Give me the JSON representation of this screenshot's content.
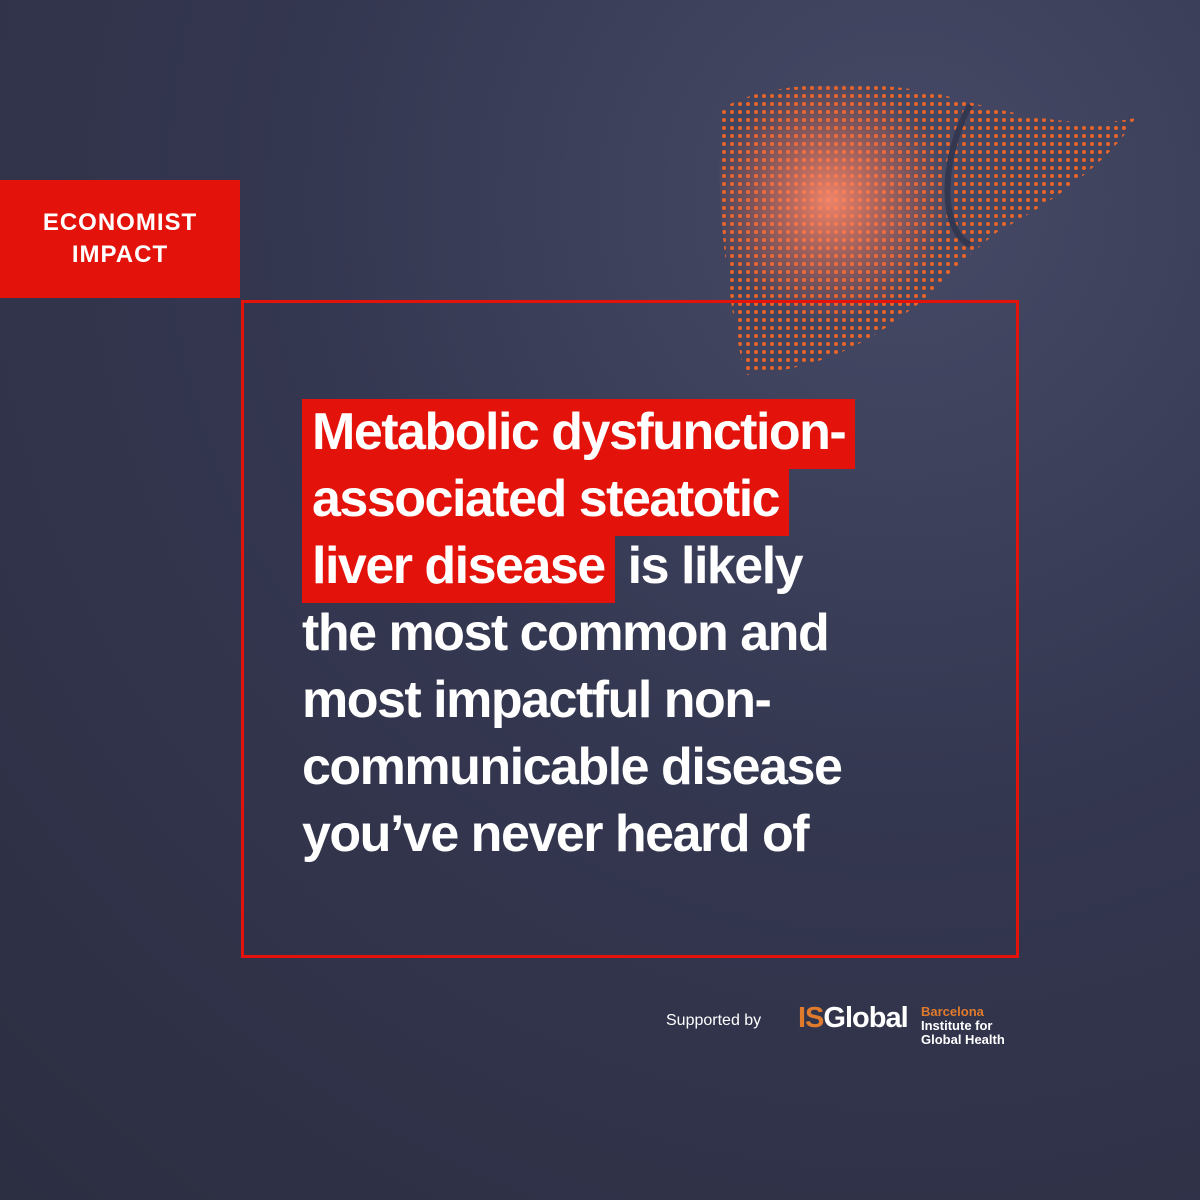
{
  "brand": {
    "lines": [
      "ECONOMIST",
      "IMPACT"
    ]
  },
  "headline": {
    "lines": [
      [
        {
          "text": "Metabolic dysfunction-",
          "highlight": true
        }
      ],
      [
        {
          "text": "associated steatotic",
          "highlight": true
        }
      ],
      [
        {
          "text": "liver disease",
          "highlight": true
        },
        {
          "text": " is likely",
          "highlight": false
        }
      ],
      [
        {
          "text": "the most common and",
          "highlight": false
        }
      ],
      [
        {
          "text": "most impactful non-",
          "highlight": false
        }
      ],
      [
        {
          "text": "communicable disease",
          "highlight": false
        }
      ],
      [
        {
          "text": "you’ve never heard of",
          "highlight": false
        }
      ]
    ]
  },
  "footer": {
    "supported_by": "Supported by",
    "logo": {
      "prefix": "IS",
      "name": "Global",
      "lines": [
        "Barcelona",
        "Institute for",
        "Global Health"
      ]
    }
  }
}
